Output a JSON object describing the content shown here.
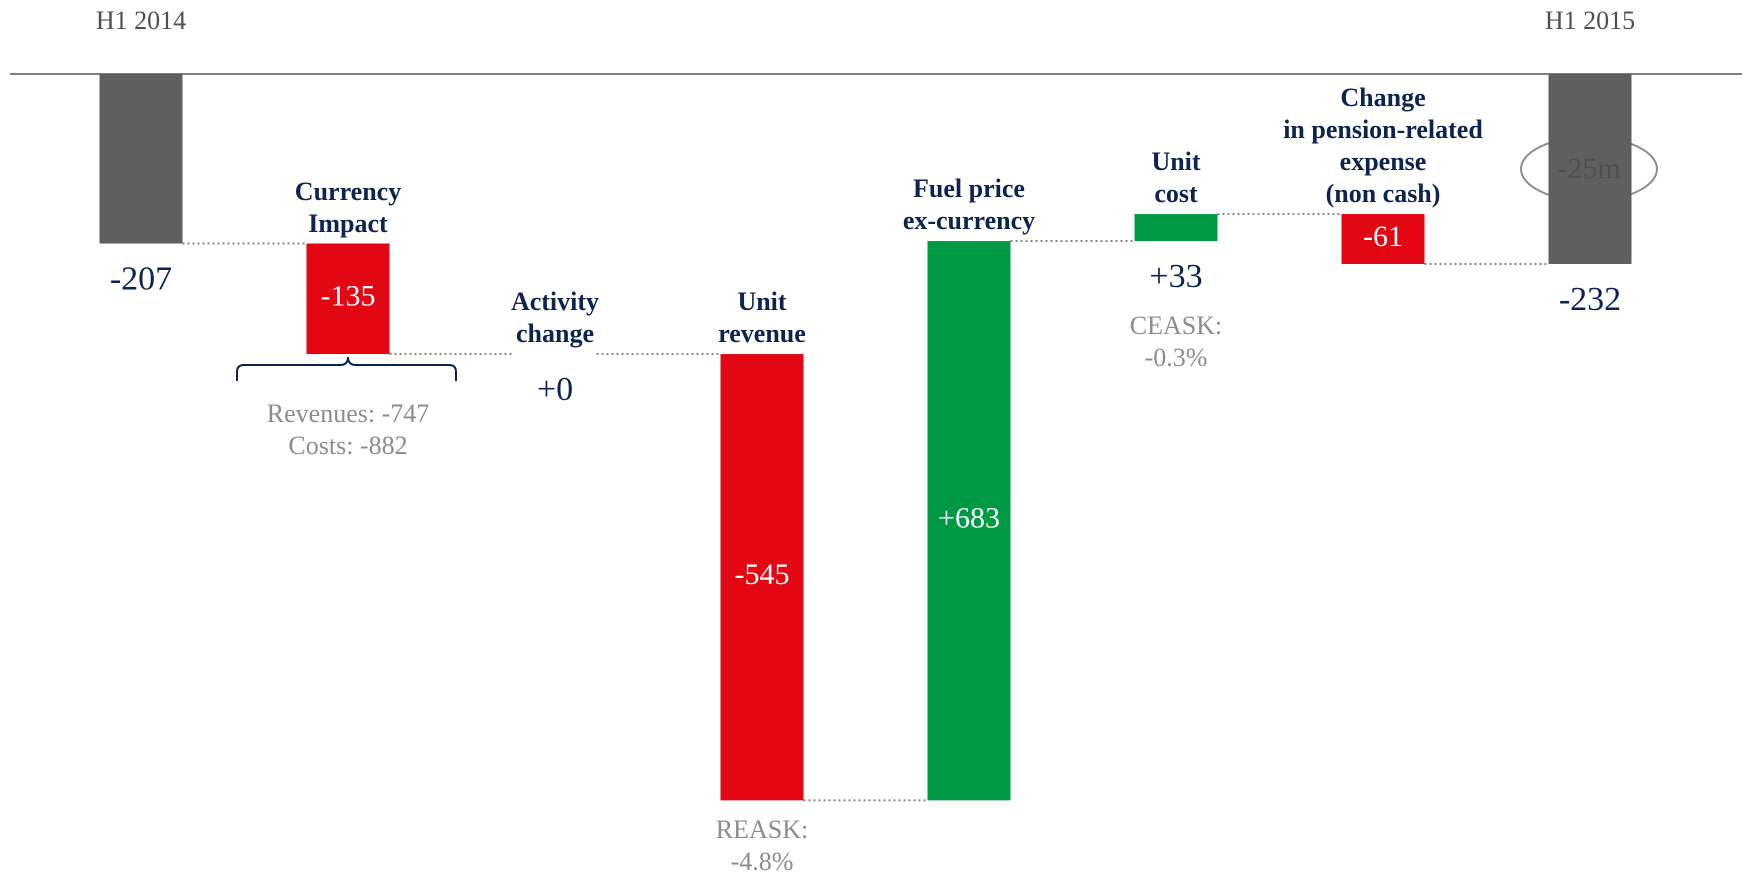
{
  "chart_data": {
    "type": "waterfall",
    "categories": [
      "H1 2014",
      "Currency\nImpact",
      "Activity\nchange",
      "Unit\nrevenue",
      "Fuel price\nex-currency",
      "Unit\ncost",
      "Change\nin pension-related\nexpense\n(non cash)",
      "H1 2015"
    ],
    "values": [
      -207,
      -135,
      0,
      -545,
      683,
      33,
      -61,
      -232
    ],
    "value_labels": [
      "-207",
      "-135",
      "+0",
      "-545",
      "+683",
      "+33",
      "-61",
      "-232"
    ],
    "measures": [
      "total",
      "relative",
      "relative",
      "relative",
      "relative",
      "relative",
      "relative",
      "total"
    ],
    "colors": {
      "total": "#5f5f5f",
      "increase": "#009a44",
      "decrease": "#e30613"
    },
    "ylim": [
      -900,
      0
    ],
    "annotations": [
      "Revenues: -747\nCosts: -882",
      "REASK:\n-4.8%",
      "CEASK:\n-0.3%",
      "-25m"
    ]
  }
}
